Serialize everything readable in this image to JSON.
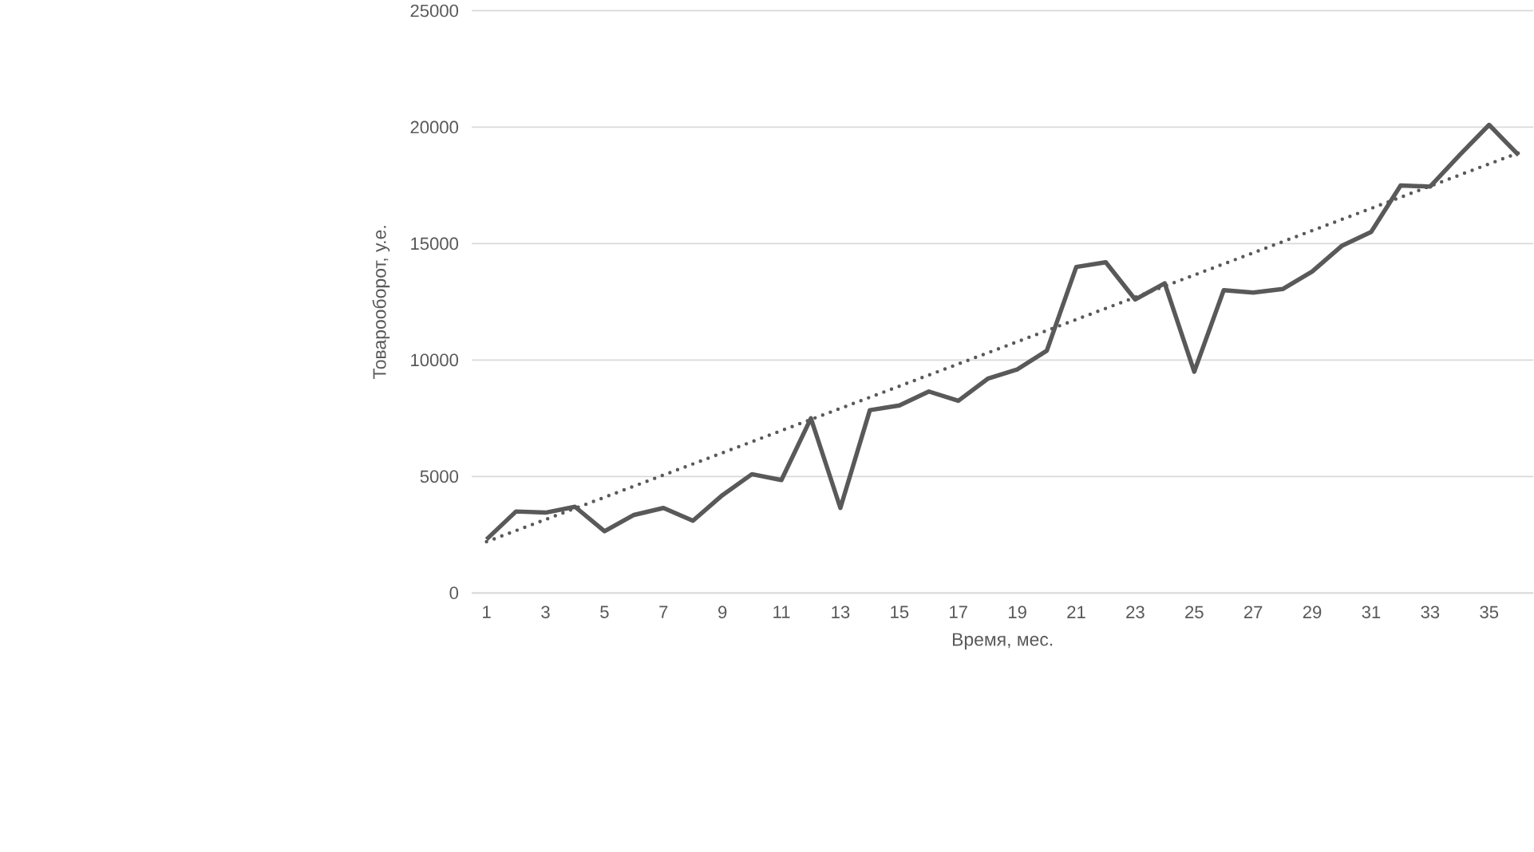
{
  "chart_data": {
    "type": "line",
    "xlabel": "Время, мес.",
    "ylabel": "Товарооборот, у.е.",
    "x": [
      1,
      2,
      3,
      4,
      5,
      6,
      7,
      8,
      9,
      10,
      11,
      12,
      13,
      14,
      15,
      16,
      17,
      18,
      19,
      20,
      21,
      22,
      23,
      24,
      25,
      26,
      27,
      28,
      29,
      30,
      31,
      32,
      33,
      34,
      35,
      36
    ],
    "xlim": [
      0.5,
      36.5
    ],
    "xticks": [
      1,
      3,
      5,
      7,
      9,
      11,
      13,
      15,
      17,
      19,
      21,
      23,
      25,
      27,
      29,
      31,
      33,
      35
    ],
    "ylim": [
      0,
      25000
    ],
    "yticks": [
      0,
      5000,
      10000,
      15000,
      20000,
      25000
    ],
    "grid": "y",
    "series": [
      {
        "color": "#595959",
        "line_style": "solid",
        "values": [
          2300,
          3500,
          3450,
          3700,
          2650,
          3350,
          3650,
          3100,
          4200,
          5100,
          4850,
          7500,
          3650,
          7850,
          8050,
          8650,
          8250,
          9200,
          9600,
          10400,
          14000,
          14200,
          12600,
          13300,
          9500,
          13000,
          12900,
          13050,
          13800,
          14900,
          15500,
          17500,
          17450,
          18800,
          20100,
          18800
        ]
      },
      {
        "color": "#595959",
        "line_style": "dotted",
        "x": [
          1,
          36
        ],
        "values": [
          2200,
          18900
        ]
      }
    ]
  }
}
